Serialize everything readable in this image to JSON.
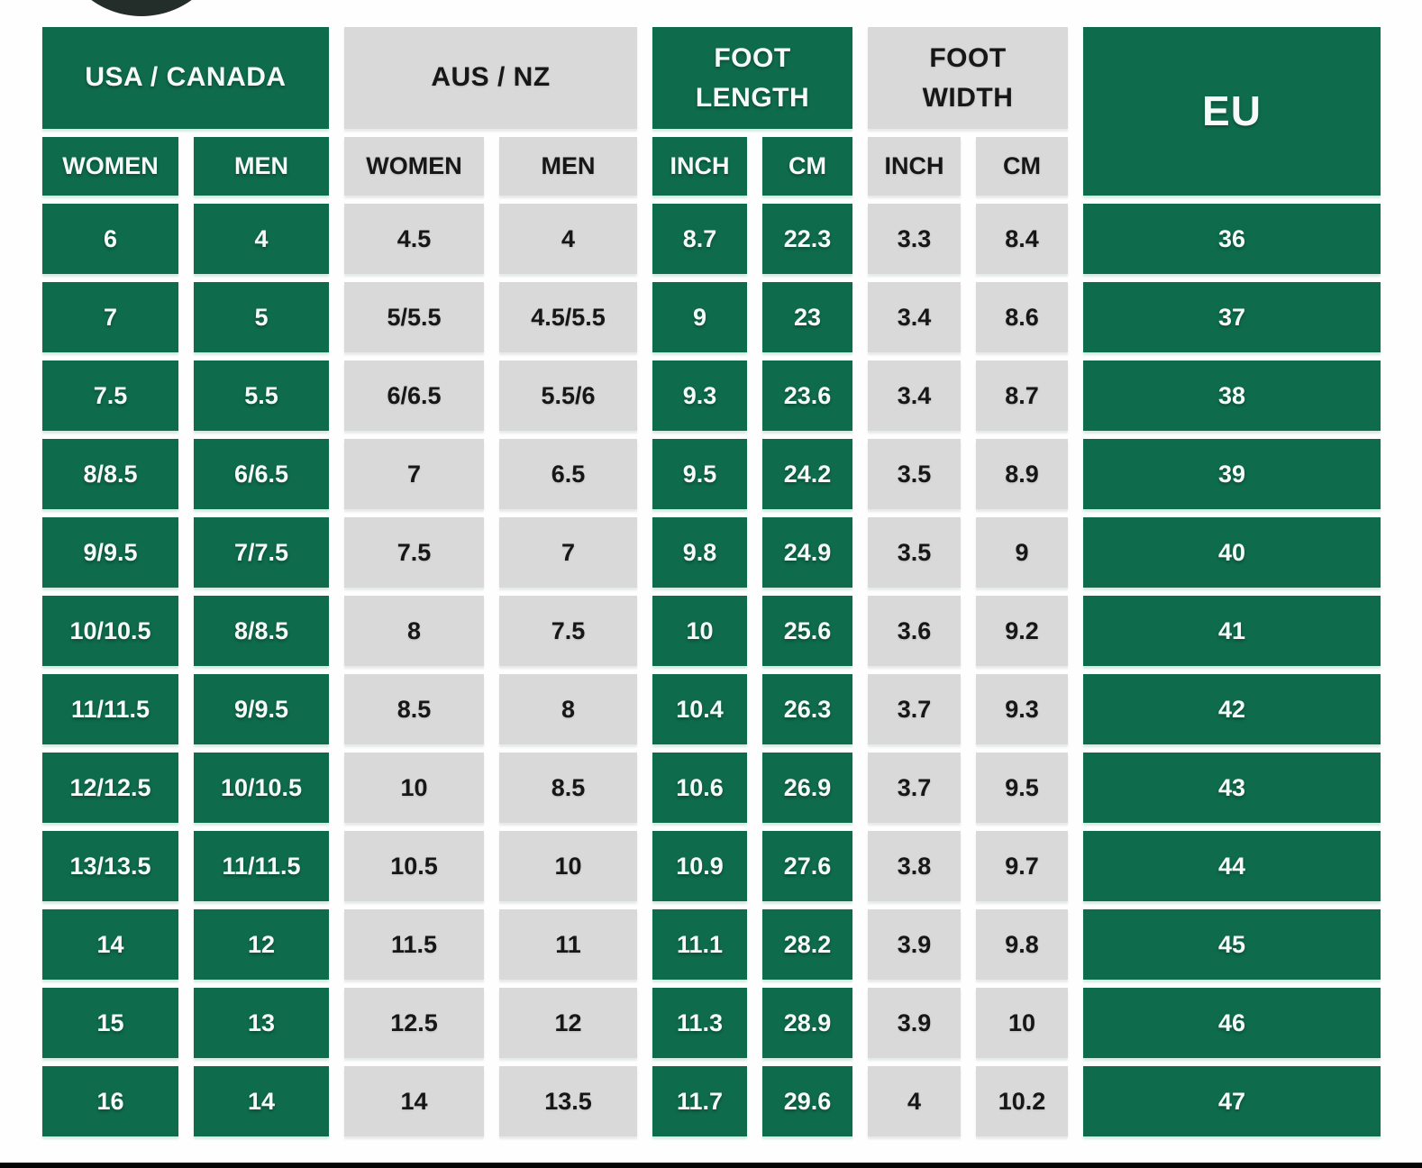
{
  "colors": {
    "green": "#0E6B4B",
    "gray": "#D9D9D9",
    "text_on_green": "#FFFFFF",
    "text_on_gray": "#171717",
    "logo_dark": "#232D29",
    "background": "#FFFFFF",
    "bottom_bar": "#040404"
  },
  "chart_data": {
    "type": "table",
    "column_groups": [
      {
        "label": "USA / CANADA",
        "style": "green",
        "columns": [
          "WOMEN",
          "MEN"
        ]
      },
      {
        "label": "AUS / NZ",
        "style": "gray",
        "columns": [
          "WOMEN",
          "MEN"
        ]
      },
      {
        "label": "FOOT LENGTH",
        "style": "green",
        "columns": [
          "INCH",
          "CM"
        ]
      },
      {
        "label": "FOOT WIDTH",
        "style": "gray",
        "columns": [
          "INCH",
          "CM"
        ]
      },
      {
        "label": "EU",
        "style": "green",
        "columns": []
      }
    ],
    "rows": [
      [
        "6",
        "4",
        "4.5",
        "4",
        "8.7",
        "22.3",
        "3.3",
        "8.4",
        "36"
      ],
      [
        "7",
        "5",
        "5/5.5",
        "4.5/5.5",
        "9",
        "23",
        "3.4",
        "8.6",
        "37"
      ],
      [
        "7.5",
        "5.5",
        "6/6.5",
        "5.5/6",
        "9.3",
        "23.6",
        "3.4",
        "8.7",
        "38"
      ],
      [
        "8/8.5",
        "6/6.5",
        "7",
        "6.5",
        "9.5",
        "24.2",
        "3.5",
        "8.9",
        "39"
      ],
      [
        "9/9.5",
        "7/7.5",
        "7.5",
        "7",
        "9.8",
        "24.9",
        "3.5",
        "9",
        "40"
      ],
      [
        "10/10.5",
        "8/8.5",
        "8",
        "7.5",
        "10",
        "25.6",
        "3.6",
        "9.2",
        "41"
      ],
      [
        "11/11.5",
        "9/9.5",
        "8.5",
        "8",
        "10.4",
        "26.3",
        "3.7",
        "9.3",
        "42"
      ],
      [
        "12/12.5",
        "10/10.5",
        "10",
        "8.5",
        "10.6",
        "26.9",
        "3.7",
        "9.5",
        "43"
      ],
      [
        "13/13.5",
        "11/11.5",
        "10.5",
        "10",
        "10.9",
        "27.6",
        "3.8",
        "9.7",
        "44"
      ],
      [
        "14",
        "12",
        "11.5",
        "11",
        "11.1",
        "28.2",
        "3.9",
        "9.8",
        "45"
      ],
      [
        "15",
        "13",
        "12.5",
        "12",
        "11.3",
        "28.9",
        "3.9",
        "10",
        "46"
      ],
      [
        "16",
        "14",
        "14",
        "13.5",
        "11.7",
        "29.6",
        "4",
        "10.2",
        "47"
      ]
    ]
  }
}
